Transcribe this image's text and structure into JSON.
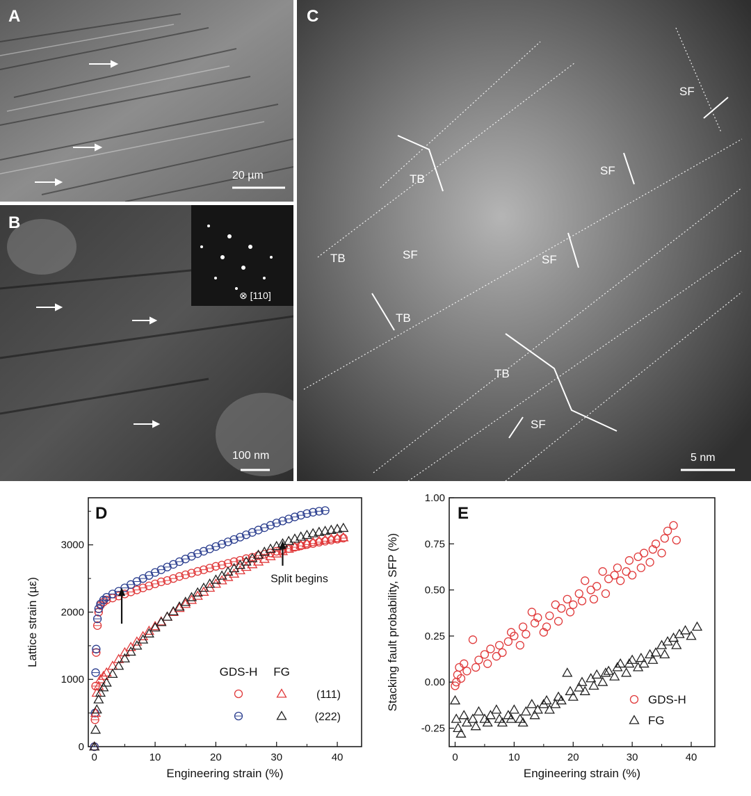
{
  "panels": {
    "a": {
      "letter": "A",
      "scale_label": "20 µm"
    },
    "b": {
      "letter": "B",
      "scale_label": "100 nm",
      "inset_label": "⊗ [110]"
    },
    "c": {
      "letter": "C",
      "scale_label": "5 nm",
      "annotations": [
        "SF",
        "TB",
        "SF",
        "TB",
        "SF",
        "SF",
        "TB",
        "TB",
        "SF"
      ]
    }
  },
  "chart_data": [
    {
      "panel": "D",
      "type": "scatter",
      "xlabel": "Engineering strain (%)",
      "ylabel": "Lattice strain (µε)",
      "xlim": [
        -1,
        44
      ],
      "ylim": [
        0,
        3700
      ],
      "xticks": [
        0,
        10,
        20,
        30,
        40
      ],
      "yticks": [
        0,
        1000,
        2000,
        3000
      ],
      "legend": {
        "placement": "lower-right",
        "headers": [
          "GDS-H",
          "FG"
        ],
        "rows": [
          "(111)",
          "(222)"
        ]
      },
      "annotations": [
        {
          "text": "Split begins",
          "x": 31,
          "y": 3000
        },
        {
          "text": "",
          "x": 4.5,
          "y": 2200
        }
      ],
      "colors": {
        "red": "#e0393a",
        "blue": "#2c3f8f",
        "black": "#222222"
      },
      "series": [
        {
          "label": "GDS-H (111)",
          "marker": "circle",
          "color": "#e0393a",
          "x": [
            0,
            0.1,
            0.2,
            0.3,
            0.5,
            0.7,
            1,
            1.5,
            2,
            3,
            4,
            5,
            6,
            7,
            8,
            9,
            10,
            11,
            12,
            13,
            14,
            15,
            16,
            17,
            18,
            19,
            20,
            21,
            22,
            23,
            24,
            25,
            26,
            27,
            28,
            29,
            30,
            31,
            32,
            33,
            34,
            35,
            36,
            37,
            38,
            39,
            40,
            41
          ],
          "y": [
            0,
            400,
            900,
            1400,
            1800,
            2000,
            2100,
            2150,
            2180,
            2210,
            2240,
            2270,
            2300,
            2330,
            2360,
            2390,
            2420,
            2450,
            2470,
            2500,
            2530,
            2555,
            2580,
            2605,
            2630,
            2655,
            2680,
            2700,
            2725,
            2750,
            2770,
            2795,
            2815,
            2840,
            2860,
            2880,
            2905,
            2925,
            2945,
            2965,
            2985,
            3005,
            3020,
            3040,
            3055,
            3070,
            3085,
            3100
          ]
        },
        {
          "label": "GDS-H (222)",
          "marker": "circle",
          "color": "#2c3f8f",
          "x": [
            0,
            0.1,
            0.2,
            0.3,
            0.5,
            0.7,
            1,
            1.5,
            2,
            3,
            4,
            5,
            6,
            7,
            8,
            9,
            10,
            11,
            12,
            13,
            14,
            15,
            16,
            17,
            18,
            19,
            20,
            21,
            22,
            23,
            24,
            25,
            26,
            27,
            28,
            29,
            30,
            31,
            32,
            33,
            34,
            35,
            36,
            37,
            38
          ],
          "y": [
            0,
            500,
            1100,
            1450,
            1900,
            2050,
            2120,
            2180,
            2220,
            2270,
            2310,
            2360,
            2410,
            2455,
            2500,
            2545,
            2590,
            2630,
            2670,
            2710,
            2750,
            2790,
            2830,
            2870,
            2905,
            2940,
            2975,
            3010,
            3045,
            3080,
            3115,
            3150,
            3185,
            3220,
            3255,
            3290,
            3325,
            3355,
            3385,
            3415,
            3440,
            3465,
            3485,
            3500,
            3510
          ]
        },
        {
          "label": "FG (111)",
          "marker": "triangle",
          "color": "#e0393a",
          "x": [
            0,
            0.2,
            0.4,
            0.7,
            1,
            1.5,
            2,
            3,
            4,
            5,
            6,
            7,
            8,
            9,
            10,
            11,
            12,
            13,
            14,
            15,
            16,
            17,
            18,
            19,
            20,
            21,
            22,
            23,
            24,
            25,
            26,
            27,
            28,
            29,
            30,
            31,
            32,
            33,
            34,
            35,
            36,
            37,
            38,
            39,
            40,
            41
          ],
          "y": [
            0,
            500,
            800,
            900,
            1000,
            1050,
            1100,
            1200,
            1300,
            1400,
            1480,
            1560,
            1640,
            1720,
            1790,
            1860,
            1930,
            2000,
            2060,
            2120,
            2180,
            2240,
            2300,
            2360,
            2420,
            2470,
            2520,
            2570,
            2620,
            2670,
            2710,
            2750,
            2790,
            2830,
            2870,
            2905,
            2940,
            2970,
            2995,
            3020,
            3040,
            3060,
            3075,
            3090,
            3100,
            3110
          ]
        },
        {
          "label": "FG (222)",
          "marker": "triangle",
          "color": "#222222",
          "x": [
            0,
            0.2,
            0.4,
            0.7,
            1,
            1.5,
            2,
            3,
            4,
            5,
            6,
            7,
            8,
            9,
            10,
            11,
            12,
            13,
            14,
            15,
            16,
            17,
            18,
            19,
            20,
            21,
            22,
            23,
            24,
            25,
            26,
            27,
            28,
            29,
            30,
            31,
            32,
            33,
            34,
            35,
            36,
            37,
            38,
            39,
            40,
            41
          ],
          "y": [
            0,
            250,
            550,
            700,
            800,
            880,
            950,
            1080,
            1200,
            1310,
            1410,
            1500,
            1590,
            1680,
            1770,
            1850,
            1930,
            2010,
            2080,
            2150,
            2220,
            2290,
            2360,
            2420,
            2480,
            2540,
            2600,
            2650,
            2700,
            2750,
            2800,
            2850,
            2895,
            2940,
            2980,
            3020,
            3055,
            3090,
            3120,
            3145,
            3170,
            3190,
            3205,
            3220,
            3235,
            3250
          ]
        }
      ]
    },
    {
      "panel": "E",
      "type": "scatter",
      "xlabel": "Engineering strain (%)",
      "ylabel": "Stacking fault probability, SFP (%)",
      "xlim": [
        -1,
        44
      ],
      "ylim": [
        -0.35,
        1.0
      ],
      "xticks": [
        0,
        10,
        20,
        30,
        40
      ],
      "yticks": [
        -0.25,
        0.0,
        0.25,
        0.5,
        0.75,
        1.0
      ],
      "ytick_labels": [
        "-0.25",
        "0.00",
        "0.25",
        "0.50",
        "0.75",
        "1.00"
      ],
      "legend": {
        "placement": "lower-right",
        "entries": [
          "GDS-H",
          "FG"
        ]
      },
      "series": [
        {
          "name": "GDS-H",
          "marker": "circle",
          "color": "#e0393a",
          "x": [
            0,
            0.2,
            0.4,
            0.7,
            1,
            1.5,
            2,
            3,
            3.5,
            4,
            5,
            5.5,
            6,
            7,
            7.5,
            8,
            9,
            9.5,
            10,
            11,
            11.5,
            12,
            13,
            13.5,
            14,
            15,
            15.5,
            16,
            17,
            17.5,
            18,
            19,
            19.5,
            20,
            21,
            21.5,
            22,
            23,
            23.5,
            24,
            25,
            25.5,
            26,
            27,
            27.5,
            28,
            29,
            29.5,
            30,
            31,
            31.5,
            32,
            33,
            33.5,
            34,
            35,
            35.5,
            36,
            37,
            37.5
          ],
          "y": [
            -0.02,
            0.0,
            0.04,
            0.08,
            0.02,
            0.1,
            0.06,
            0.23,
            0.08,
            0.12,
            0.15,
            0.1,
            0.18,
            0.14,
            0.2,
            0.16,
            0.22,
            0.27,
            0.25,
            0.2,
            0.3,
            0.26,
            0.38,
            0.32,
            0.35,
            0.27,
            0.3,
            0.36,
            0.42,
            0.33,
            0.4,
            0.45,
            0.38,
            0.42,
            0.48,
            0.44,
            0.55,
            0.5,
            0.45,
            0.52,
            0.6,
            0.48,
            0.56,
            0.58,
            0.62,
            0.55,
            0.6,
            0.66,
            0.58,
            0.68,
            0.62,
            0.7,
            0.65,
            0.72,
            0.75,
            0.7,
            0.78,
            0.82,
            0.85,
            0.77
          ]
        },
        {
          "name": "FG",
          "marker": "triangle",
          "color": "#222222",
          "x": [
            0,
            0.2,
            0.5,
            1,
            1.5,
            2,
            3,
            3.5,
            4,
            5,
            5.5,
            6,
            7,
            7.5,
            8,
            9,
            9.5,
            10,
            11,
            11.5,
            12,
            13,
            13.5,
            14,
            15,
            15.5,
            16,
            17,
            17.5,
            18,
            19,
            19.5,
            20,
            21,
            21.5,
            22,
            23,
            23.5,
            24,
            25,
            25.5,
            26,
            27,
            27.5,
            28,
            29,
            29.5,
            30,
            31,
            31.5,
            32,
            33,
            33.5,
            34,
            35,
            35.5,
            36,
            37,
            37.5,
            38,
            39,
            40,
            41
          ],
          "y": [
            -0.1,
            -0.2,
            -0.25,
            -0.28,
            -0.18,
            -0.22,
            -0.2,
            -0.24,
            -0.16,
            -0.2,
            -0.22,
            -0.18,
            -0.15,
            -0.2,
            -0.22,
            -0.18,
            -0.2,
            -0.15,
            -0.2,
            -0.22,
            -0.16,
            -0.12,
            -0.18,
            -0.15,
            -0.12,
            -0.1,
            -0.15,
            -0.12,
            -0.08,
            -0.1,
            0.05,
            -0.05,
            -0.08,
            -0.03,
            0.0,
            -0.05,
            0.02,
            -0.02,
            0.04,
            0.0,
            0.05,
            0.06,
            0.03,
            0.08,
            0.1,
            0.05,
            0.1,
            0.12,
            0.08,
            0.13,
            0.1,
            0.15,
            0.12,
            0.16,
            0.2,
            0.15,
            0.22,
            0.24,
            0.2,
            0.26,
            0.28,
            0.25,
            0.3
          ]
        }
      ]
    }
  ]
}
